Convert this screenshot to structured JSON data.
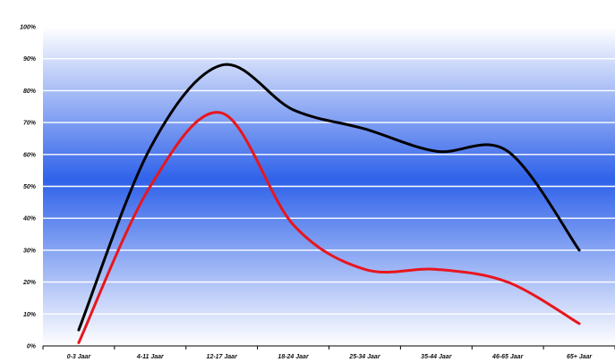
{
  "chart_data": {
    "type": "line",
    "title": "",
    "xlabel": "",
    "ylabel": "",
    "categories": [
      "0-3 Jaar",
      "4-11 Jaar",
      "12-17 Jaar",
      "18-24 Jaar",
      "25-34 Jaar",
      "35-44 Jaar",
      "46-65 Jaar",
      "65+ Jaar"
    ],
    "y_ticks": [
      "0%",
      "10%",
      "20%",
      "30%",
      "40%",
      "50%",
      "60%",
      "70%",
      "80%",
      "90%",
      "100%"
    ],
    "ylim": [
      0,
      100
    ],
    "grid": true,
    "legend": "none",
    "series": [
      {
        "color": "#000000",
        "values": [
          5,
          62,
          88,
          74,
          68,
          61,
          61,
          30
        ]
      },
      {
        "color": "#e8161d",
        "values": [
          1,
          50,
          73,
          38,
          24,
          24,
          20,
          7
        ]
      }
    ],
    "colors": {
      "background_top": "#ffffff",
      "background_mid": "#2f62ea",
      "background_bottom": "#ffffff",
      "gridline": "#ffffff",
      "axis": "#000000"
    }
  }
}
